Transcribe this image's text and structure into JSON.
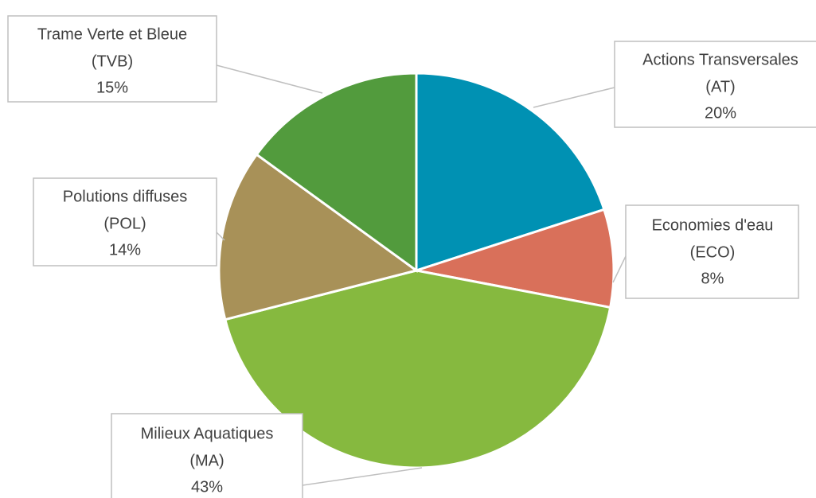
{
  "chart_data": {
    "type": "pie",
    "categories": [
      "Actions Transversales",
      "Economies d'eau",
      "Milieux Aquatiques",
      "Polutions diffuses",
      "Trame Verte et Bleue"
    ],
    "abbreviations": [
      "(AT)",
      "(ECO)",
      "(MA)",
      "(POL)",
      "(TVB)"
    ],
    "values": [
      20,
      8,
      43,
      14,
      15
    ],
    "value_labels": [
      "20%",
      "8%",
      "43%",
      "14%",
      "15%"
    ],
    "colors": [
      "#0091b3",
      "#d9705a",
      "#86b93f",
      "#a89158",
      "#529b3d"
    ]
  }
}
